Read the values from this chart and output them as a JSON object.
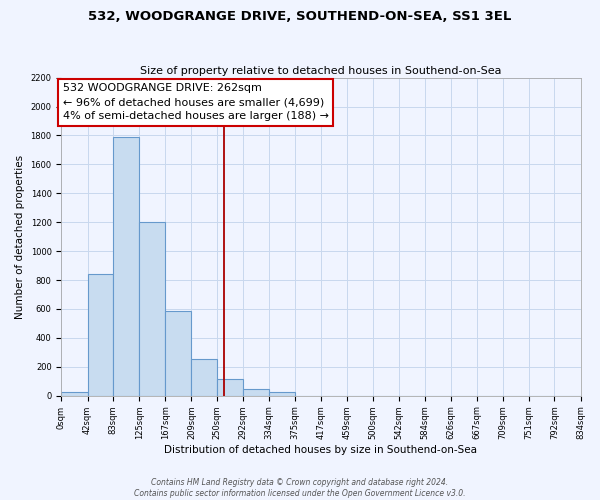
{
  "title": "532, WOODGRANGE DRIVE, SOUTHEND-ON-SEA, SS1 3EL",
  "subtitle": "Size of property relative to detached houses in Southend-on-Sea",
  "xlabel": "Distribution of detached houses by size in Southend-on-Sea",
  "ylabel": "Number of detached properties",
  "footer_line1": "Contains HM Land Registry data © Crown copyright and database right 2024.",
  "footer_line2": "Contains public sector information licensed under the Open Government Licence v3.0.",
  "bar_edges": [
    0,
    42,
    83,
    125,
    167,
    209,
    250,
    292,
    334,
    375,
    417,
    459,
    500,
    542,
    584,
    626,
    667,
    709,
    751,
    792,
    834
  ],
  "bar_heights": [
    25,
    840,
    1790,
    1200,
    585,
    255,
    115,
    45,
    25,
    0,
    0,
    0,
    0,
    0,
    0,
    0,
    0,
    0,
    0,
    0
  ],
  "tick_labels": [
    "0sqm",
    "42sqm",
    "83sqm",
    "125sqm",
    "167sqm",
    "209sqm",
    "250sqm",
    "292sqm",
    "334sqm",
    "375sqm",
    "417sqm",
    "459sqm",
    "500sqm",
    "542sqm",
    "584sqm",
    "626sqm",
    "667sqm",
    "709sqm",
    "751sqm",
    "792sqm",
    "834sqm"
  ],
  "bar_color": "#c8dcf0",
  "bar_edge_color": "#6699cc",
  "vline_x": 262,
  "vline_color": "#aa0000",
  "annotation_title": "532 WOODGRANGE DRIVE: 262sqm",
  "annotation_line1": "← 96% of detached houses are smaller (4,699)",
  "annotation_line2": "4% of semi-detached houses are larger (188) →",
  "annotation_box_edge": "#cc0000",
  "ylim": [
    0,
    2200
  ],
  "yticks": [
    0,
    200,
    400,
    600,
    800,
    1000,
    1200,
    1400,
    1600,
    1800,
    2000,
    2200
  ],
  "background_color": "#f0f4ff",
  "grid_color": "#c8d8ee",
  "title_fontsize": 9.5,
  "subtitle_fontsize": 8,
  "ylabel_fontsize": 7.5,
  "xlabel_fontsize": 7.5,
  "tick_fontsize": 6,
  "footer_fontsize": 5.5,
  "ann_fontsize": 8
}
